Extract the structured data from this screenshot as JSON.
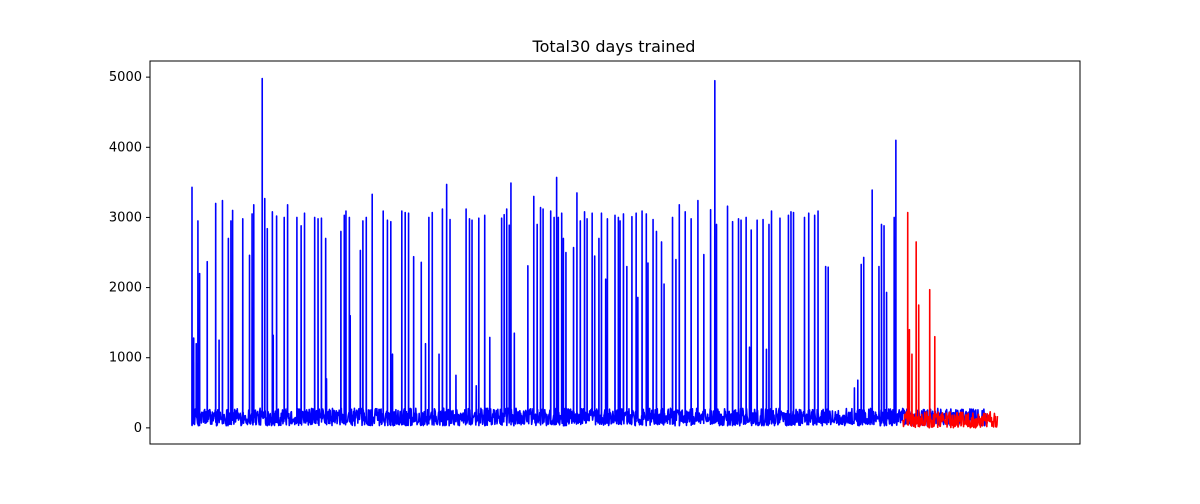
{
  "chart_data": {
    "type": "line",
    "title": "Total30 days trained",
    "xlabel": "",
    "ylabel": "",
    "x_ticks_visible": false,
    "grid": false,
    "ylim": [
      -230,
      5230
    ],
    "yticks": [
      0,
      1000,
      2000,
      3000,
      4000,
      5000
    ],
    "ytick_labels": [
      "0",
      "1000",
      "2000",
      "3000",
      "4000",
      "5000"
    ],
    "x_range": [
      0,
      1000
    ],
    "series": [
      {
        "color": "#0000ff",
        "x_start": 0,
        "x_end": 940,
        "baseline_range": [
          30,
          280
        ],
        "spikes": [
          [
            0,
            3430
          ],
          [
            2,
            1280
          ],
          [
            5,
            1200
          ],
          [
            7,
            2950
          ],
          [
            9,
            2200
          ],
          [
            18,
            2370
          ],
          [
            28,
            3200
          ],
          [
            32,
            1250
          ],
          [
            36,
            3240
          ],
          [
            43,
            2700
          ],
          [
            46,
            2950
          ],
          [
            48,
            3100
          ],
          [
            60,
            2980
          ],
          [
            68,
            2460
          ],
          [
            71,
            3050
          ],
          [
            73,
            3180
          ],
          [
            83,
            4980
          ],
          [
            86,
            3270
          ],
          [
            89,
            2840
          ],
          [
            95,
            3080
          ],
          [
            96,
            1320
          ],
          [
            100,
            3020
          ],
          [
            109,
            3000
          ],
          [
            113,
            3180
          ],
          [
            124,
            3000
          ],
          [
            129,
            2880
          ],
          [
            133,
            3060
          ],
          [
            145,
            3000
          ],
          [
            149,
            2980
          ],
          [
            153,
            2990
          ],
          [
            158,
            2700
          ],
          [
            159,
            700
          ],
          [
            176,
            2800
          ],
          [
            180,
            3030
          ],
          [
            182,
            3090
          ],
          [
            186,
            3000
          ],
          [
            187,
            1600
          ],
          [
            199,
            2530
          ],
          [
            202,
            2950
          ],
          [
            206,
            3000
          ],
          [
            213,
            3330
          ],
          [
            226,
            3090
          ],
          [
            231,
            2960
          ],
          [
            235,
            2940
          ],
          [
            237,
            1050
          ],
          [
            248,
            3090
          ],
          [
            252,
            3070
          ],
          [
            256,
            3060
          ],
          [
            262,
            2440
          ],
          [
            271,
            2360
          ],
          [
            276,
            1200
          ],
          [
            280,
            3000
          ],
          [
            284,
            3070
          ],
          [
            292,
            1050
          ],
          [
            296,
            3120
          ],
          [
            301,
            3470
          ],
          [
            305,
            2970
          ],
          [
            312,
            750
          ],
          [
            324,
            3120
          ],
          [
            328,
            2980
          ],
          [
            331,
            2960
          ],
          [
            336,
            600
          ],
          [
            339,
            2990
          ],
          [
            346,
            3030
          ],
          [
            352,
            1290
          ],
          [
            366,
            2990
          ],
          [
            369,
            3040
          ],
          [
            372,
            3120
          ],
          [
            375,
            2890
          ],
          [
            377,
            3490
          ],
          [
            381,
            1350
          ],
          [
            397,
            2310
          ],
          [
            404,
            3300
          ],
          [
            408,
            2900
          ],
          [
            412,
            3140
          ],
          [
            415,
            3120
          ],
          [
            424,
            3090
          ],
          [
            428,
            3000
          ],
          [
            431,
            3570
          ],
          [
            433,
            3000
          ],
          [
            437,
            3060
          ],
          [
            439,
            2700
          ],
          [
            442,
            2500
          ],
          [
            451,
            2570
          ],
          [
            455,
            3350
          ],
          [
            459,
            2950
          ],
          [
            464,
            3080
          ],
          [
            467,
            2980
          ],
          [
            473,
            3060
          ],
          [
            476,
            2450
          ],
          [
            481,
            2700
          ],
          [
            484,
            3060
          ],
          [
            489,
            2120
          ],
          [
            491,
            2980
          ],
          [
            500,
            3030
          ],
          [
            504,
            3000
          ],
          [
            506,
            2950
          ],
          [
            510,
            3050
          ],
          [
            514,
            2300
          ],
          [
            520,
            3010
          ],
          [
            525,
            3060
          ],
          [
            527,
            1860
          ],
          [
            532,
            3090
          ],
          [
            537,
            3050
          ],
          [
            539,
            2350
          ],
          [
            545,
            2970
          ],
          [
            549,
            2800
          ],
          [
            555,
            2650
          ],
          [
            558,
            2050
          ],
          [
            568,
            3000
          ],
          [
            572,
            2400
          ],
          [
            576,
            3180
          ],
          [
            583,
            3080
          ],
          [
            590,
            2980
          ],
          [
            598,
            3240
          ],
          [
            605,
            2470
          ],
          [
            613,
            3110
          ],
          [
            618,
            4950
          ],
          [
            620,
            2900
          ],
          [
            633,
            3160
          ],
          [
            639,
            2940
          ],
          [
            646,
            2980
          ],
          [
            649,
            2960
          ],
          [
            655,
            3000
          ],
          [
            659,
            1150
          ],
          [
            661,
            2820
          ],
          [
            668,
            2960
          ],
          [
            675,
            2970
          ],
          [
            679,
            1120
          ],
          [
            682,
            2900
          ],
          [
            685,
            3090
          ],
          [
            695,
            2990
          ],
          [
            705,
            3030
          ],
          [
            708,
            3080
          ],
          [
            711,
            3070
          ],
          [
            724,
            3000
          ],
          [
            729,
            3060
          ],
          [
            736,
            3030
          ],
          [
            740,
            3090
          ],
          [
            749,
            2300
          ],
          [
            752,
            2290
          ],
          [
            783,
            570
          ],
          [
            787,
            680
          ],
          [
            791,
            2330
          ],
          [
            794,
            2430
          ],
          [
            804,
            3390
          ],
          [
            812,
            2300
          ],
          [
            815,
            2900
          ],
          [
            818,
            2880
          ],
          [
            821,
            1930
          ],
          [
            830,
            3000
          ],
          [
            832,
            4100
          ]
        ]
      },
      {
        "color": "#ff0000",
        "x_start": 840,
        "x_end": 952,
        "baseline_range": [
          0,
          230
        ],
        "spikes": [
          [
            846,
            3070
          ],
          [
            848,
            1400
          ],
          [
            851,
            1050
          ],
          [
            856,
            2650
          ],
          [
            859,
            1750
          ],
          [
            872,
            1970
          ],
          [
            878,
            1300
          ]
        ]
      }
    ]
  }
}
